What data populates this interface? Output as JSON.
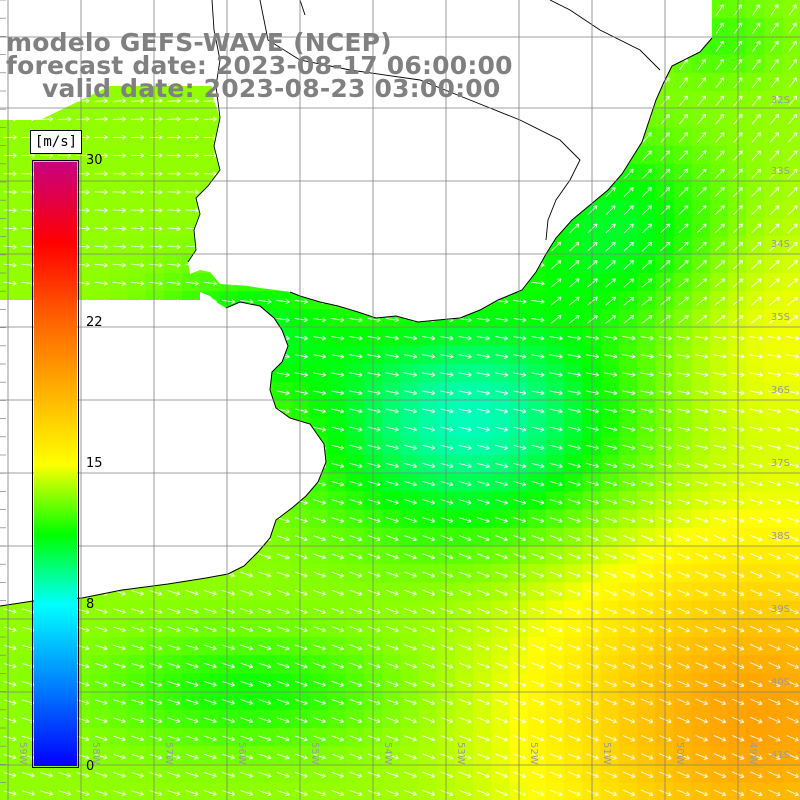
{
  "title": {
    "line1": "modelo GEFS-WAVE (NCEP)",
    "line2": "forecast date: 2023-08-17 06:00:00",
    "line3": "valid date: 2023-08-23 03:00:00"
  },
  "colorbar": {
    "units": "[m/s]",
    "ticks": [
      {
        "value": 30,
        "label": "30"
      },
      {
        "value": 22,
        "label": "22"
      },
      {
        "value": 15,
        "label": "15"
      },
      {
        "value": 8,
        "label": "8"
      },
      {
        "value": 0,
        "label": "0"
      }
    ],
    "stops": [
      {
        "value": 0,
        "color": "#0000ff"
      },
      {
        "value": 8,
        "color": "#00ffff"
      },
      {
        "value": 11.5,
        "color": "#00ff00"
      },
      {
        "value": 15,
        "color": "#ffff00"
      },
      {
        "value": 22,
        "color": "#ff6600"
      },
      {
        "value": 26,
        "color": "#ff0000"
      },
      {
        "value": 30,
        "color": "#c8007f"
      }
    ]
  },
  "map": {
    "lon_range": [
      -59,
      -48
    ],
    "lat_range": [
      -41.5,
      -30.5
    ],
    "lat_labels": [
      "32S",
      "33S",
      "34S",
      "35S",
      "36S",
      "37S",
      "38S",
      "39S",
      "40S",
      "41S"
    ],
    "lon_labels": [
      "59W",
      "58W",
      "57W",
      "56W",
      "55W",
      "54W",
      "53W",
      "52W",
      "51W",
      "50W",
      "49W"
    ],
    "land_color": "#ffffff",
    "coast_color": "#000000",
    "grid_color": "#808080"
  }
}
